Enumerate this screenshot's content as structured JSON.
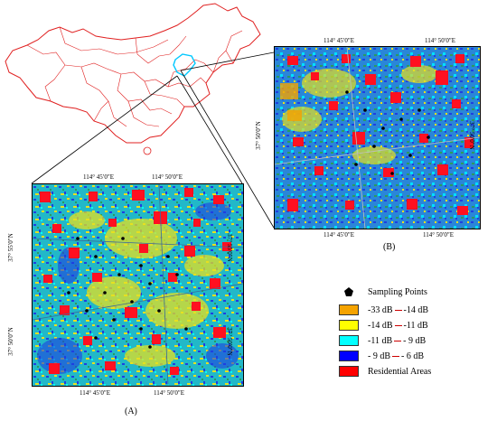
{
  "map_a": {
    "caption": "(A)",
    "top_ticks": [
      "114° 45′0″E",
      "114° 50′0″E"
    ],
    "bottom_ticks": [
      "114° 45′0″E",
      "114° 50′0″E"
    ],
    "left_ticks": [
      "37° 55′0″N",
      "37° 50′0″N"
    ],
    "right_ticks": [
      "37° 55′0″N",
      "37° 50′0″N"
    ]
  },
  "map_b": {
    "caption": "(B)",
    "top_ticks": [
      "114° 45′0″E",
      "114° 50′0″E"
    ],
    "bottom_ticks": [
      "114° 45′0″E",
      "114° 50′0″E"
    ],
    "left_ticks": [
      "37° 50′0″N"
    ],
    "right_ticks": [
      "37° 50′0″N"
    ]
  },
  "legend": {
    "sampling_points": "Sampling Points",
    "classes": [
      {
        "from": "-33 dB",
        "to": "-14 dB",
        "color": "#f5a300"
      },
      {
        "from": "-14 dB",
        "to": "-11 dB",
        "color": "#ffff00"
      },
      {
        "from": "-11 dB",
        "to": "- 9 dB",
        "color": "#00ffff"
      },
      {
        "from": "- 9 dB",
        "to": "- 6 dB",
        "color": "#0000ff"
      }
    ],
    "residential": "Residential Areas",
    "residential_color": "#ff0000"
  },
  "colors": {
    "country_outline": "#e02020",
    "study_area_outline": "#00c8ff",
    "map_base": "#22b8c8",
    "map_border": "#000000"
  }
}
